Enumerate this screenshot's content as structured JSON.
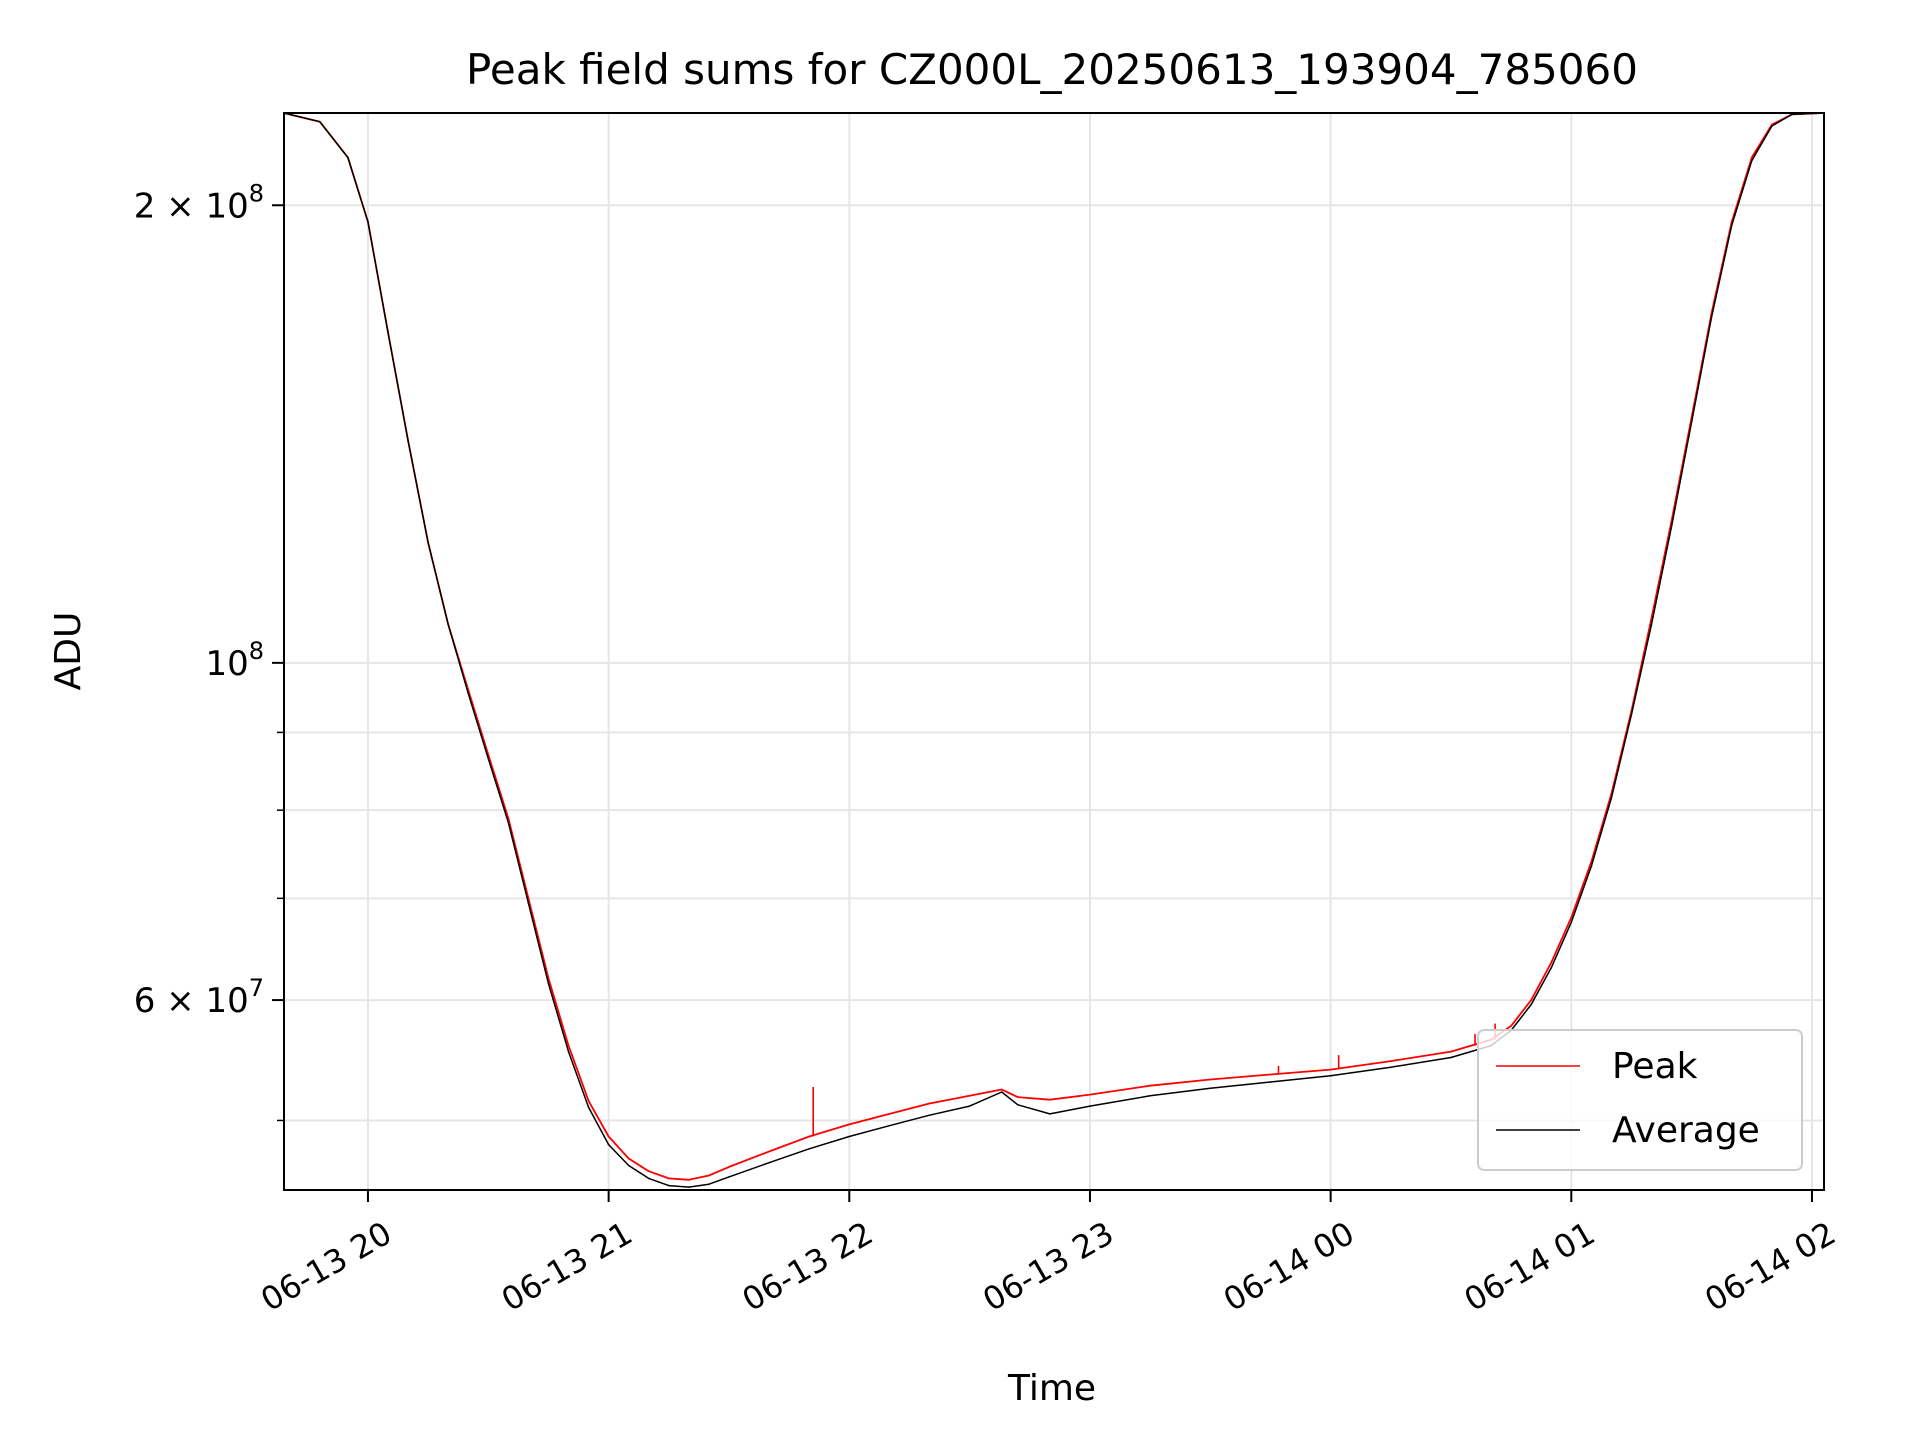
{
  "chart_data": {
    "type": "line",
    "title": "Peak field sums for CZ000L_20250613_193904_785060",
    "xlabel": "Time",
    "ylabel": "ADU",
    "y_scale": "log",
    "grid": true,
    "legend_position": "lower-right",
    "xlim": [
      "2025-06-13 19:39:04",
      "2025-06-14 02:03:00"
    ],
    "ylim": [
      45000000,
      230000000
    ],
    "x_ticks": [
      {
        "time": "2025-06-13 20:00",
        "label": "06-13 20"
      },
      {
        "time": "2025-06-13 21:00",
        "label": "06-13 21"
      },
      {
        "time": "2025-06-13 22:00",
        "label": "06-13 22"
      },
      {
        "time": "2025-06-13 23:00",
        "label": "06-13 23"
      },
      {
        "time": "2025-06-14 00:00",
        "label": "06-14 00"
      },
      {
        "time": "2025-06-14 01:00",
        "label": "06-14 01"
      },
      {
        "time": "2025-06-14 02:00",
        "label": "06-14 02"
      }
    ],
    "y_major_ticks": [
      {
        "value": 100000000,
        "base": "10",
        "exp": "8"
      },
      {
        "value": 200000000,
        "base": "2 × 10",
        "exp": "8"
      },
      {
        "value": 60000000,
        "base": "6 × 10",
        "exp": "7"
      }
    ],
    "y_minor_ticks": [
      50000000,
      70000000,
      80000000,
      90000000
    ],
    "series": [
      {
        "name": "Peak",
        "color": "#ff0000",
        "points": [
          [
            "2025-06-13 19:39",
            230000000
          ],
          [
            "2025-06-13 19:48",
            227000000
          ],
          [
            "2025-06-13 19:55",
            215000000
          ],
          [
            "2025-06-13 20:00",
            195000000
          ],
          [
            "2025-06-13 20:05",
            165000000
          ],
          [
            "2025-06-13 20:10",
            140000000
          ],
          [
            "2025-06-13 20:15",
            120000000
          ],
          [
            "2025-06-13 20:20",
            106000000
          ],
          [
            "2025-06-13 20:25",
            96000000
          ],
          [
            "2025-06-13 20:30",
            87000000
          ],
          [
            "2025-06-13 20:35",
            79000000
          ],
          [
            "2025-06-13 20:40",
            70000000
          ],
          [
            "2025-06-13 20:45",
            62000000
          ],
          [
            "2025-06-13 20:50",
            56000000
          ],
          [
            "2025-06-13 20:55",
            51500000
          ],
          [
            "2025-06-13 21:00",
            48800000
          ],
          [
            "2025-06-13 21:05",
            47200000
          ],
          [
            "2025-06-13 21:10",
            46300000
          ],
          [
            "2025-06-13 21:15",
            45800000
          ],
          [
            "2025-06-13 21:20",
            45700000
          ],
          [
            "2025-06-13 21:25",
            46000000
          ],
          [
            "2025-06-13 21:30",
            46600000
          ],
          [
            "2025-06-13 21:40",
            47700000
          ],
          [
            "2025-06-13 21:50",
            48800000
          ],
          [
            "2025-06-13 22:00",
            49700000
          ],
          [
            "2025-06-13 22:10",
            50500000
          ],
          [
            "2025-06-13 22:20",
            51300000
          ],
          [
            "2025-06-13 22:30",
            51900000
          ],
          [
            "2025-06-13 22:38",
            52400000
          ],
          [
            "2025-06-13 22:42",
            51800000
          ],
          [
            "2025-06-13 22:50",
            51600000
          ],
          [
            "2025-06-13 23:00",
            52000000
          ],
          [
            "2025-06-13 23:15",
            52700000
          ],
          [
            "2025-06-13 23:30",
            53200000
          ],
          [
            "2025-06-13 23:45",
            53600000
          ],
          [
            "2025-06-14 00:00",
            54000000
          ],
          [
            "2025-06-14 00:15",
            54700000
          ],
          [
            "2025-06-14 00:30",
            55500000
          ],
          [
            "2025-06-14 00:40",
            56500000
          ],
          [
            "2025-06-14 00:45",
            57700000
          ],
          [
            "2025-06-14 00:50",
            60000000
          ],
          [
            "2025-06-14 00:55",
            63500000
          ],
          [
            "2025-06-14 01:00",
            68000000
          ],
          [
            "2025-06-14 01:05",
            74000000
          ],
          [
            "2025-06-14 01:10",
            82000000
          ],
          [
            "2025-06-14 01:15",
            93000000
          ],
          [
            "2025-06-14 01:20",
            107000000
          ],
          [
            "2025-06-14 01:25",
            124000000
          ],
          [
            "2025-06-14 01:30",
            145000000
          ],
          [
            "2025-06-14 01:35",
            170000000
          ],
          [
            "2025-06-14 01:40",
            195000000
          ],
          [
            "2025-06-14 01:45",
            215000000
          ],
          [
            "2025-06-14 01:50",
            226000000
          ],
          [
            "2025-06-14 01:55",
            229500000
          ],
          [
            "2025-06-14 02:03",
            230000000
          ]
        ]
      },
      {
        "name": "Average",
        "color": "#000000",
        "points": [
          [
            "2025-06-13 19:39",
            230000000
          ],
          [
            "2025-06-13 19:48",
            227000000
          ],
          [
            "2025-06-13 19:55",
            215000000
          ],
          [
            "2025-06-13 20:00",
            195000000
          ],
          [
            "2025-06-13 20:05",
            165000000
          ],
          [
            "2025-06-13 20:10",
            140000000
          ],
          [
            "2025-06-13 20:15",
            120000000
          ],
          [
            "2025-06-13 20:20",
            106000000
          ],
          [
            "2025-06-13 20:25",
            95500000
          ],
          [
            "2025-06-13 20:30",
            86500000
          ],
          [
            "2025-06-13 20:35",
            78500000
          ],
          [
            "2025-06-13 20:40",
            69500000
          ],
          [
            "2025-06-13 20:45",
            61500000
          ],
          [
            "2025-06-13 20:50",
            55500000
          ],
          [
            "2025-06-13 20:55",
            51000000
          ],
          [
            "2025-06-13 21:00",
            48200000
          ],
          [
            "2025-06-13 21:05",
            46700000
          ],
          [
            "2025-06-13 21:10",
            45800000
          ],
          [
            "2025-06-13 21:15",
            45300000
          ],
          [
            "2025-06-13 21:20",
            45200000
          ],
          [
            "2025-06-13 21:25",
            45400000
          ],
          [
            "2025-06-13 21:30",
            45900000
          ],
          [
            "2025-06-13 21:40",
            46900000
          ],
          [
            "2025-06-13 21:50",
            47900000
          ],
          [
            "2025-06-13 22:00",
            48800000
          ],
          [
            "2025-06-13 22:10",
            49600000
          ],
          [
            "2025-06-13 22:20",
            50400000
          ],
          [
            "2025-06-13 22:30",
            51100000
          ],
          [
            "2025-06-13 22:38",
            52200000
          ],
          [
            "2025-06-13 22:42",
            51200000
          ],
          [
            "2025-06-13 22:50",
            50500000
          ],
          [
            "2025-06-13 23:00",
            51100000
          ],
          [
            "2025-06-13 23:15",
            51900000
          ],
          [
            "2025-06-13 23:30",
            52500000
          ],
          [
            "2025-06-13 23:45",
            53000000
          ],
          [
            "2025-06-14 00:00",
            53500000
          ],
          [
            "2025-06-14 00:15",
            54200000
          ],
          [
            "2025-06-14 00:30",
            55000000
          ],
          [
            "2025-06-14 00:40",
            56000000
          ],
          [
            "2025-06-14 00:45",
            57300000
          ],
          [
            "2025-06-14 00:50",
            59600000
          ],
          [
            "2025-06-14 00:55",
            63000000
          ],
          [
            "2025-06-14 01:00",
            67500000
          ],
          [
            "2025-06-14 01:05",
            73500000
          ],
          [
            "2025-06-14 01:10",
            81500000
          ],
          [
            "2025-06-14 01:15",
            92500000
          ],
          [
            "2025-06-14 01:20",
            106000000
          ],
          [
            "2025-06-14 01:25",
            123000000
          ],
          [
            "2025-06-14 01:30",
            144000000
          ],
          [
            "2025-06-14 01:35",
            169000000
          ],
          [
            "2025-06-14 01:40",
            194000000
          ],
          [
            "2025-06-14 01:45",
            214000000
          ],
          [
            "2025-06-14 01:50",
            225500000
          ],
          [
            "2025-06-14 01:55",
            229500000
          ],
          [
            "2025-06-14 02:03",
            230000000
          ]
        ]
      }
    ],
    "spikes": [
      {
        "series": "Peak",
        "time": "2025-06-13 21:51",
        "base": 48800000,
        "top": 52600000
      },
      {
        "series": "Peak",
        "time": "2025-06-14 00:02",
        "base": 54100000,
        "top": 55200000
      },
      {
        "series": "Peak",
        "time": "2025-06-14 00:36",
        "base": 56000000,
        "top": 57000000
      },
      {
        "series": "Peak",
        "time": "2025-06-14 00:41",
        "base": 56500000,
        "top": 57900000
      },
      {
        "series": "Peak",
        "time": "2025-06-13 23:47",
        "base": 53600000,
        "top": 54300000
      }
    ]
  }
}
